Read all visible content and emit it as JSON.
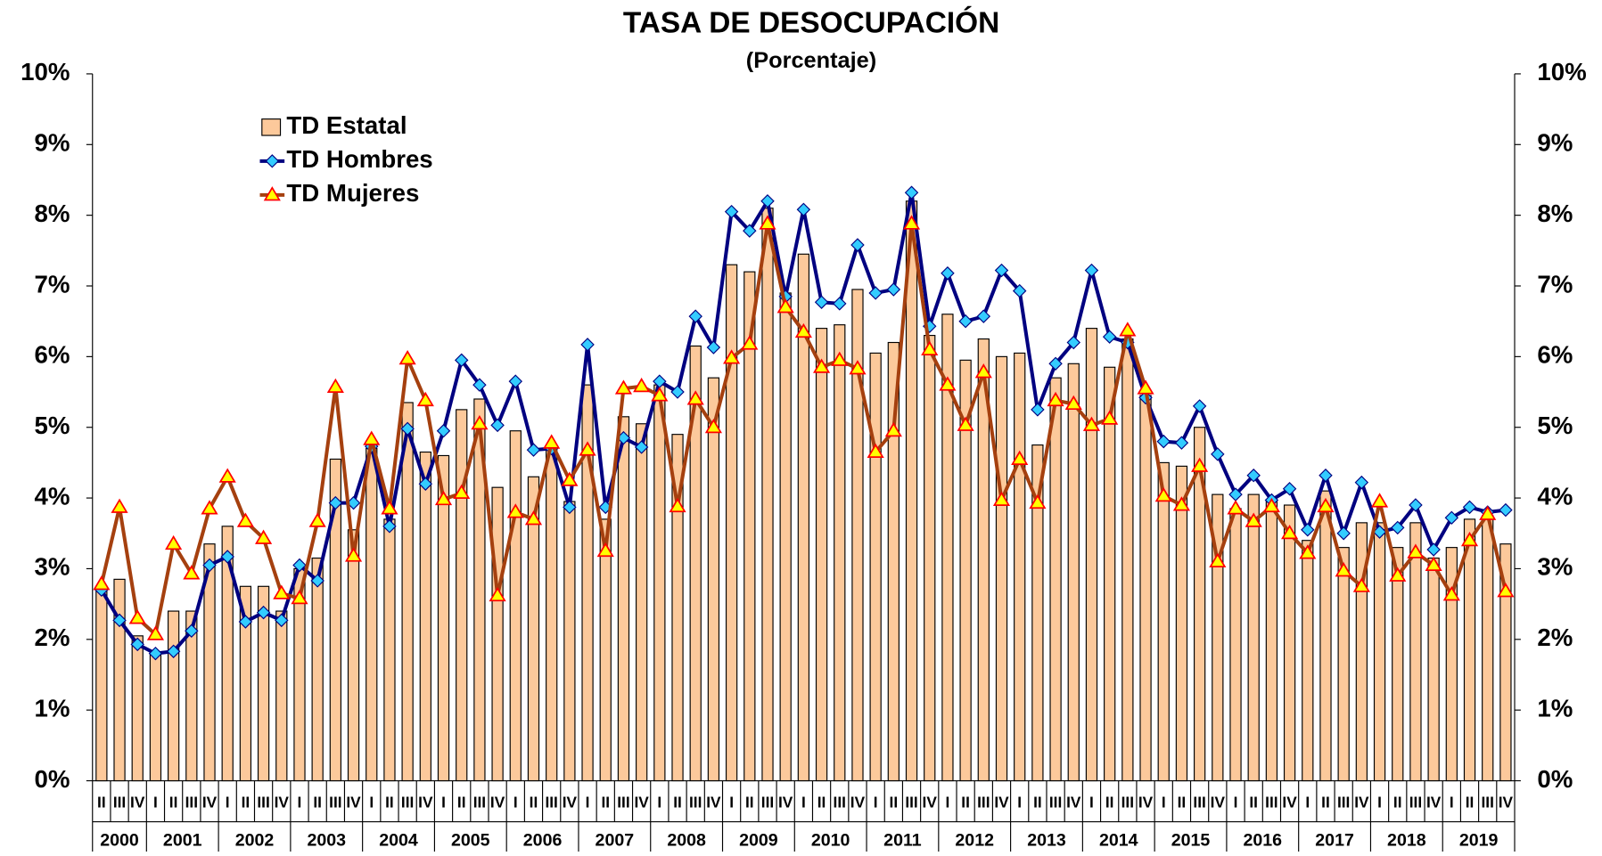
{
  "chart_data": {
    "type": "bar",
    "title": "TASA DE DESOCUPACIÓN",
    "subtitle": "(Porcentaje)",
    "categories": [
      "II",
      "III",
      "IV",
      "I",
      "II",
      "III",
      "IV",
      "I",
      "II",
      "III",
      "IV",
      "I",
      "II",
      "III",
      "IV",
      "I",
      "II",
      "III",
      "IV",
      "I",
      "II",
      "III",
      "IV",
      "I",
      "II",
      "III",
      "IV",
      "I",
      "II",
      "III",
      "IV",
      "I",
      "II",
      "III",
      "IV",
      "I",
      "II",
      "III",
      "IV",
      "I",
      "II",
      "III",
      "IV",
      "I",
      "II",
      "III",
      "IV",
      "I",
      "II",
      "III",
      "IV",
      "I",
      "II",
      "III",
      "IV",
      "I",
      "II",
      "III",
      "IV",
      "I",
      "II",
      "III",
      "IV",
      "I",
      "II",
      "III",
      "IV",
      "I",
      "II",
      "III",
      "IV",
      "I",
      "II",
      "III",
      "IV",
      "I",
      "II",
      "III",
      "IV"
    ],
    "years": [
      "2000",
      "2001",
      "2002",
      "2003",
      "2004",
      "2005",
      "2006",
      "2007",
      "2008",
      "2009",
      "2010",
      "2011",
      "2012",
      "2013",
      "2014",
      "2015",
      "2016",
      "2017",
      "2018",
      "2019"
    ],
    "series": [
      {
        "name": "TD Estatal",
        "type": "bar",
        "color": "#fcc99b",
        "values": [
          2.7,
          2.85,
          2.05,
          1.8,
          2.4,
          2.4,
          3.35,
          3.6,
          2.75,
          2.75,
          2.4,
          3.0,
          3.15,
          4.55,
          3.55,
          4.7,
          3.7,
          5.35,
          4.65,
          4.6,
          5.25,
          5.4,
          4.15,
          4.95,
          4.3,
          4.7,
          3.95,
          5.6,
          3.7,
          5.15,
          5.05,
          5.6,
          4.9,
          6.15,
          5.7,
          7.3,
          7.2,
          8.1,
          6.9,
          7.45,
          6.4,
          6.45,
          6.95,
          6.05,
          6.2,
          8.2,
          6.3,
          6.6,
          5.95,
          6.25,
          6.0,
          6.05,
          4.75,
          5.7,
          5.9,
          6.4,
          5.85,
          6.25,
          5.45,
          4.5,
          4.45,
          5.0,
          4.05,
          3.85,
          4.05,
          3.95,
          3.9,
          3.4,
          4.1,
          3.3,
          3.65,
          3.65,
          3.3,
          3.65,
          3.15,
          3.3,
          3.7,
          3.75,
          3.35
        ]
      },
      {
        "name": "TD Hombres",
        "type": "line",
        "color": "#000080",
        "marker": "diamond",
        "marker_color": "#33ccff",
        "values": [
          2.7,
          2.27,
          1.93,
          1.8,
          1.83,
          2.12,
          3.05,
          3.17,
          2.25,
          2.38,
          2.27,
          3.05,
          2.83,
          3.93,
          3.93,
          4.73,
          3.6,
          4.98,
          4.2,
          4.95,
          5.95,
          5.6,
          5.03,
          5.65,
          4.68,
          4.7,
          3.87,
          6.17,
          3.87,
          4.85,
          4.72,
          5.65,
          5.5,
          6.57,
          6.13,
          8.05,
          7.78,
          8.2,
          6.85,
          8.08,
          6.77,
          6.75,
          7.58,
          6.9,
          6.95,
          8.32,
          6.43,
          7.18,
          6.5,
          6.57,
          7.22,
          6.93,
          5.25,
          5.9,
          6.2,
          7.22,
          6.28,
          6.2,
          5.42,
          4.8,
          4.78,
          5.3,
          4.62,
          4.05,
          4.32,
          3.97,
          4.13,
          3.55,
          4.32,
          3.5,
          4.22,
          3.52,
          3.58,
          3.9,
          3.27,
          3.72,
          3.87,
          3.8,
          3.83
        ]
      },
      {
        "name": "TD Mujeres",
        "type": "line",
        "color": "#a5400f",
        "marker": "triangle",
        "marker_color": "#ffff00",
        "marker_edge": "#ff0000",
        "values": [
          2.78,
          3.87,
          2.3,
          2.07,
          3.35,
          2.93,
          3.85,
          4.3,
          3.67,
          3.43,
          2.65,
          2.58,
          3.67,
          5.57,
          3.18,
          4.83,
          3.85,
          5.97,
          5.38,
          3.98,
          4.07,
          5.05,
          2.62,
          3.8,
          3.7,
          4.78,
          4.25,
          4.68,
          3.25,
          5.55,
          5.58,
          5.45,
          3.88,
          5.4,
          5.0,
          5.98,
          6.18,
          7.88,
          6.7,
          6.35,
          5.85,
          5.95,
          5.83,
          4.65,
          4.95,
          7.88,
          6.1,
          5.6,
          5.03,
          5.78,
          3.97,
          4.55,
          3.93,
          5.38,
          5.33,
          5.03,
          5.12,
          6.37,
          5.55,
          4.03,
          3.9,
          4.45,
          3.1,
          3.85,
          3.67,
          3.88,
          3.5,
          3.22,
          3.88,
          2.97,
          2.75,
          3.95,
          2.9,
          3.23,
          3.05,
          2.63,
          3.4,
          3.77,
          2.68
        ]
      }
    ],
    "ylim": [
      0,
      10
    ],
    "yticks": [
      {
        "value": 0,
        "label": "0%"
      },
      {
        "value": 1,
        "label": "1%"
      },
      {
        "value": 2,
        "label": "2%"
      },
      {
        "value": 3,
        "label": "3%"
      },
      {
        "value": 4,
        "label": "4%"
      },
      {
        "value": 5,
        "label": "5%"
      },
      {
        "value": 6,
        "label": "6%"
      },
      {
        "value": 7,
        "label": "7%"
      },
      {
        "value": 8,
        "label": "8%"
      },
      {
        "value": 9,
        "label": "9%"
      },
      {
        "value": 10,
        "label": "10%"
      }
    ],
    "y2lim": [
      0,
      10
    ],
    "y2ticks": [
      {
        "value": 0,
        "label": "0%"
      },
      {
        "value": 1,
        "label": "1%"
      },
      {
        "value": 2,
        "label": "2%"
      },
      {
        "value": 3,
        "label": "3%"
      },
      {
        "value": 4,
        "label": "4%"
      },
      {
        "value": 5,
        "label": "5%"
      },
      {
        "value": 6,
        "label": "6%"
      },
      {
        "value": 7,
        "label": "7%"
      },
      {
        "value": 8,
        "label": "8%"
      },
      {
        "value": 9,
        "label": "9%"
      },
      {
        "value": 10,
        "label": "10%"
      }
    ],
    "grid": false,
    "legend": "upper-left"
  }
}
